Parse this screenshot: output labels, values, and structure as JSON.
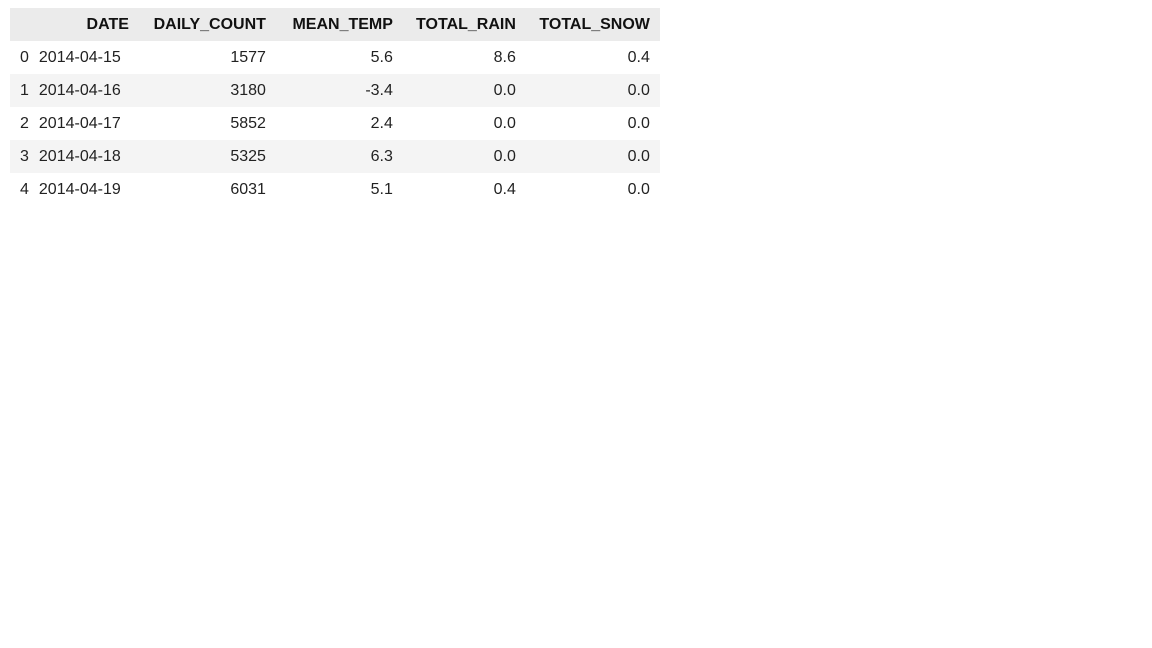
{
  "table": {
    "columns": [
      "DATE",
      "DAILY_COUNT",
      "MEAN_TEMP",
      "TOTAL_RAIN",
      "TOTAL_SNOW"
    ],
    "rows": [
      {
        "index": "0",
        "date": "2014-04-15",
        "daily_count": "1577",
        "mean_temp": "5.6",
        "total_rain": "8.6",
        "total_snow": "0.4"
      },
      {
        "index": "1",
        "date": "2014-04-16",
        "daily_count": "3180",
        "mean_temp": "-3.4",
        "total_rain": "0.0",
        "total_snow": "0.0"
      },
      {
        "index": "2",
        "date": "2014-04-17",
        "daily_count": "5852",
        "mean_temp": "2.4",
        "total_rain": "0.0",
        "total_snow": "0.0"
      },
      {
        "index": "3",
        "date": "2014-04-18",
        "daily_count": "5325",
        "mean_temp": "6.3",
        "total_rain": "0.0",
        "total_snow": "0.0"
      },
      {
        "index": "4",
        "date": "2014-04-19",
        "daily_count": "6031",
        "mean_temp": "5.1",
        "total_rain": "0.4",
        "total_snow": "0.0"
      }
    ]
  },
  "colors": {
    "header_bg": "#ebebeb",
    "stripe_bg": "#f4f4f4"
  }
}
